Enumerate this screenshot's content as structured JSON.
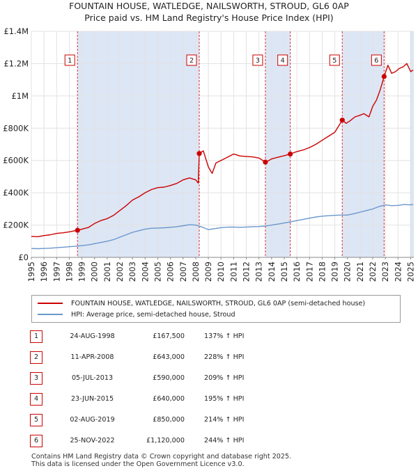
{
  "header": {
    "title_line1": "FOUNTAIN HOUSE, WATLEDGE, NAILSWORTH, STROUD, GL6 0AP",
    "title_line2": "Price paid vs. HM Land Registry's House Price Index (HPI)"
  },
  "colors": {
    "property": "#cc0000",
    "hpi": "#6a97cc",
    "shade": "#dde6f5",
    "vline": "#dd3333",
    "grid": "#e2e2e2"
  },
  "legend": {
    "property_label": "FOUNTAIN HOUSE, WATLEDGE, NAILSWORTH, STROUD, GL6 0AP (semi-detached house)",
    "hpi_label": "HPI: Average price, semi-detached house, Stroud"
  },
  "chart_data": {
    "type": "line",
    "title": "Price paid vs. HM Land Registry's House Price Index (HPI)",
    "xlim": [
      1995,
      2025.25
    ],
    "ylim": [
      0,
      1400000
    ],
    "y_ticks": [
      {
        "value": 0,
        "label": "£0"
      },
      {
        "value": 200000,
        "label": "£200K"
      },
      {
        "value": 400000,
        "label": "£400K"
      },
      {
        "value": 600000,
        "label": "£600K"
      },
      {
        "value": 800000,
        "label": "£800K"
      },
      {
        "value": 1000000,
        "label": "£1M"
      },
      {
        "value": 1200000,
        "label": "£1.2M"
      },
      {
        "value": 1400000,
        "label": "£1.4M"
      }
    ],
    "x_ticks": [
      "1995",
      "1996",
      "1997",
      "1998",
      "1999",
      "2000",
      "2001",
      "2002",
      "2003",
      "2004",
      "2005",
      "2006",
      "2007",
      "2008",
      "2009",
      "2010",
      "2011",
      "2012",
      "2013",
      "2014",
      "2015",
      "2016",
      "2017",
      "2018",
      "2019",
      "2020",
      "2021",
      "2022",
      "2023",
      "2024",
      "2025"
    ],
    "sale_markers": [
      {
        "n": "1",
        "x": 1998.65
      },
      {
        "n": "2",
        "x": 2008.28
      },
      {
        "n": "3",
        "x": 2013.51
      },
      {
        "n": "4",
        "x": 2015.48
      },
      {
        "n": "5",
        "x": 2019.59
      },
      {
        "n": "6",
        "x": 2022.9
      }
    ],
    "shaded_ranges": [
      [
        1998.65,
        2008.28
      ],
      [
        2013.51,
        2015.48
      ],
      [
        2019.59,
        2022.9
      ],
      [
        2024.95,
        2025.25
      ]
    ],
    "series": [
      {
        "name": "FOUNTAIN HOUSE, WATLEDGE, NAILSWORTH, STROUD, GL6 0AP (semi-detached house)",
        "color": "#cc0000",
        "x": [
          1995,
          1995.5,
          1996,
          1996.5,
          1997,
          1997.5,
          1998,
          1998.65,
          1999,
          1999.5,
          2000,
          2000.5,
          2001,
          2001.5,
          2002,
          2002.5,
          2003,
          2003.5,
          2004,
          2004.5,
          2005,
          2005.5,
          2006,
          2006.5,
          2007,
          2007.5,
          2008,
          2008.2,
          2008.28,
          2008.6,
          2009,
          2009.3,
          2009.6,
          2010,
          2010.5,
          2011,
          2011.5,
          2012,
          2012.5,
          2013,
          2013.51,
          2013.8,
          2014,
          2014.5,
          2015,
          2015.48,
          2016,
          2016.5,
          2017,
          2017.5,
          2018,
          2018.5,
          2019,
          2019.59,
          2019.9,
          2020.2,
          2020.6,
          2021,
          2021.3,
          2021.7,
          2022,
          2022.3,
          2022.6,
          2022.9,
          2023.2,
          2023.5,
          2023.8,
          2024.1,
          2024.4,
          2024.7,
          2025,
          2025.2
        ],
        "y": [
          130000,
          128000,
          135000,
          140000,
          148000,
          152000,
          158000,
          167500,
          175000,
          185000,
          210000,
          228000,
          240000,
          260000,
          290000,
          320000,
          355000,
          375000,
          400000,
          420000,
          432000,
          435000,
          445000,
          458000,
          480000,
          492000,
          480000,
          460000,
          643000,
          660000,
          560000,
          520000,
          585000,
          600000,
          620000,
          640000,
          628000,
          625000,
          622000,
          615000,
          590000,
          600000,
          610000,
          620000,
          630000,
          640000,
          655000,
          665000,
          680000,
          700000,
          725000,
          750000,
          775000,
          850000,
          830000,
          845000,
          870000,
          880000,
          890000,
          870000,
          935000,
          975000,
          1040000,
          1120000,
          1190000,
          1140000,
          1150000,
          1170000,
          1180000,
          1200000,
          1150000,
          1160000
        ]
      },
      {
        "name": "HPI: Average price, semi-detached house, Stroud",
        "color": "#6a97cc",
        "x": [
          1995,
          1995.5,
          1996,
          1996.5,
          1997,
          1997.5,
          1998,
          1998.65,
          1999,
          1999.5,
          2000,
          2000.5,
          2001,
          2001.5,
          2002,
          2002.5,
          2003,
          2003.5,
          2004,
          2004.5,
          2005,
          2005.5,
          2006,
          2006.5,
          2007,
          2007.5,
          2008,
          2008.5,
          2009,
          2009.5,
          2010,
          2010.5,
          2011,
          2011.5,
          2012,
          2012.5,
          2013,
          2013.5,
          2014,
          2014.5,
          2015,
          2015.5,
          2016,
          2016.5,
          2017,
          2017.5,
          2018,
          2018.5,
          2019,
          2019.5,
          2020,
          2020.5,
          2021,
          2021.5,
          2022,
          2022.5,
          2023,
          2023.5,
          2024,
          2024.5,
          2025,
          2025.2
        ],
        "y": [
          55000,
          54000,
          55000,
          57000,
          60000,
          63000,
          66000,
          70000,
          73000,
          77000,
          85000,
          92000,
          100000,
          110000,
          125000,
          140000,
          155000,
          165000,
          175000,
          180000,
          182000,
          183000,
          186000,
          190000,
          196000,
          202000,
          200000,
          188000,
          172000,
          178000,
          184000,
          187000,
          188000,
          186000,
          188000,
          190000,
          191000,
          194000,
          200000,
          206000,
          213000,
          220000,
          228000,
          235000,
          243000,
          250000,
          255000,
          258000,
          260000,
          262000,
          262000,
          270000,
          280000,
          290000,
          300000,
          315000,
          325000,
          320000,
          322000,
          328000,
          325000,
          328000
        ]
      }
    ]
  },
  "sales": [
    {
      "n": "1",
      "date": "24-AUG-1998",
      "price": "£167,500",
      "hpi": "137% ↑ HPI"
    },
    {
      "n": "2",
      "date": "11-APR-2008",
      "price": "£643,000",
      "hpi": "228% ↑ HPI"
    },
    {
      "n": "3",
      "date": "05-JUL-2013",
      "price": "£590,000",
      "hpi": "209% ↑ HPI"
    },
    {
      "n": "4",
      "date": "23-JUN-2015",
      "price": "£640,000",
      "hpi": "195% ↑ HPI"
    },
    {
      "n": "5",
      "date": "02-AUG-2019",
      "price": "£850,000",
      "hpi": "214% ↑ HPI"
    },
    {
      "n": "6",
      "date": "25-NOV-2022",
      "price": "£1,120,000",
      "hpi": "244% ↑ HPI"
    }
  ],
  "footer": {
    "line1": "Contains HM Land Registry data © Crown copyright and database right 2025.",
    "line2": "This data is licensed under the Open Government Licence v3.0."
  }
}
